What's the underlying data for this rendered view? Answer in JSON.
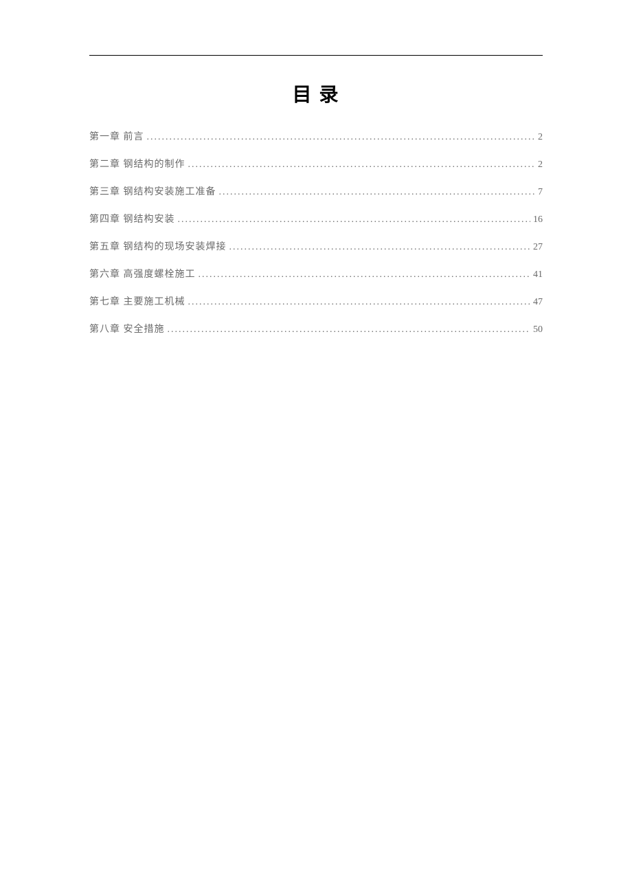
{
  "title": "目 录",
  "text_color": "#6a6a6a",
  "title_color": "#000000",
  "rule_color": "#000000",
  "title_fontsize": 28,
  "entry_fontsize": 14,
  "entries": [
    {
      "label": "第一章 前言",
      "page": "2"
    },
    {
      "label": "第二章 钢结构的制作",
      "page": "2"
    },
    {
      "label": "第三章 钢结构安装施工准备",
      "page": "7"
    },
    {
      "label": "第四章 钢结构安装",
      "page": "16"
    },
    {
      "label": "第五章 钢结构的现场安装焊接",
      "page": "27"
    },
    {
      "label": "第六章 高强度螺栓施工",
      "page": "41"
    },
    {
      "label": "第七章 主要施工机械",
      "page": "47"
    },
    {
      "label": "第八章 安全措施",
      "page": "50"
    }
  ]
}
